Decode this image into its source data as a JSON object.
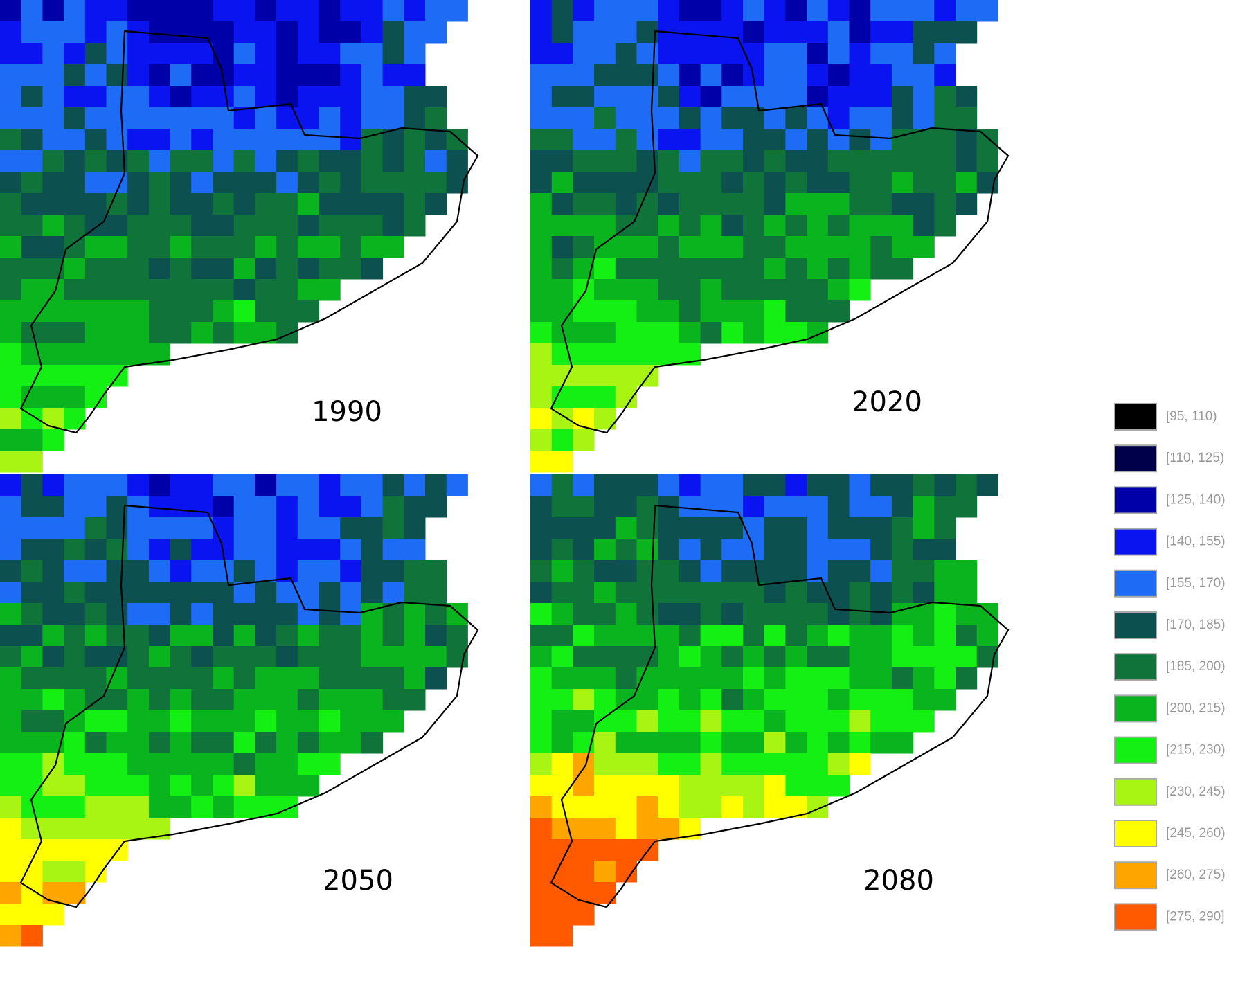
{
  "panels": [
    {
      "label": "1990"
    },
    {
      "label": "2020"
    },
    {
      "label": "2050"
    },
    {
      "label": "2080"
    }
  ],
  "legend": [
    {
      "label": "[95, 110)",
      "color": "#000000"
    },
    {
      "label": "[110, 125)",
      "color": "#00004a"
    },
    {
      "label": "[125, 140)",
      "color": "#0000a8"
    },
    {
      "label": "[140, 155)",
      "color": "#0a14f0"
    },
    {
      "label": "[155, 170)",
      "color": "#1e6cf5"
    },
    {
      "label": "[170, 185)",
      "color": "#0d5050"
    },
    {
      "label": "[185, 200)",
      "color": "#10743a"
    },
    {
      "label": "[200, 215)",
      "color": "#0ab41e"
    },
    {
      "label": "[215, 230)",
      "color": "#14f014"
    },
    {
      "label": "[230, 245)",
      "color": "#a8f514"
    },
    {
      "label": "[245, 260)",
      "color": "#ffff00"
    },
    {
      "label": "[260, 275)",
      "color": "#ffa500"
    },
    {
      "label": "[275, 290]",
      "color": "#ff5a00"
    }
  ]
}
